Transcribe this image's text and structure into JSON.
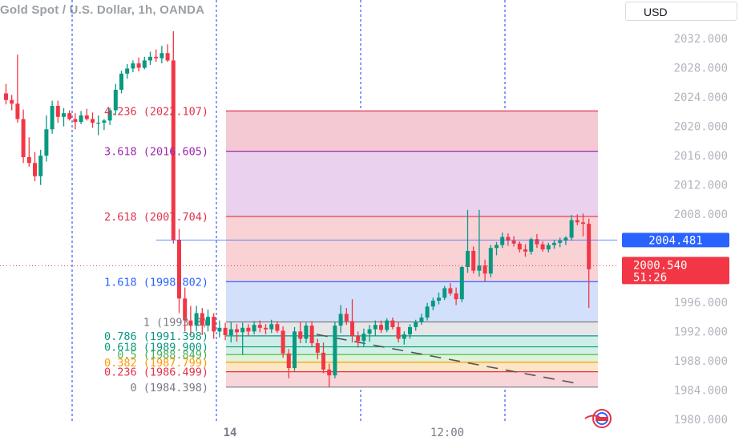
{
  "header": {
    "title": "Gold Spot / U.S. Dollar, 1h, OANDA",
    "currency_label": "USD"
  },
  "chart_data": {
    "type": "candlestick",
    "title": "Gold Spot / U.S. Dollar, 1h, OANDA",
    "ylim": [
      1979.0,
      2035.0
    ],
    "y_ticks": [
      "2032.000",
      "2028.000",
      "2024.000",
      "2020.000",
      "2016.000",
      "2012.000",
      "2008.000",
      "1996.000",
      "1992.000",
      "1988.000",
      "1984.000",
      "1980.000"
    ],
    "y_tick_values": [
      2032,
      2028,
      2024,
      2020,
      2016,
      2012,
      2008,
      1996,
      1992,
      1988,
      1984,
      1980
    ],
    "x_ticks": [
      "14",
      "12:00"
    ],
    "price_labels": {
      "current_line": {
        "value": 2004.481,
        "label": "2004.481"
      },
      "last_price": {
        "value": 2000.54,
        "label": "2000.540",
        "countdown": "51:26"
      }
    },
    "fib_levels": [
      {
        "ratio": "4.236",
        "value": 2022.107,
        "label": "4.236 (2022.107)",
        "color": "#e0334a"
      },
      {
        "ratio": "3.618",
        "value": 2016.605,
        "label": "3.618 (2016.605)",
        "color": "#9c27b0"
      },
      {
        "ratio": "2.618",
        "value": 2007.704,
        "label": "2.618 (2007.704)",
        "color": "#e0334a"
      },
      {
        "ratio": "1.618",
        "value": 1998.802,
        "label": "1.618 (1998.802)",
        "color": "#2962ff"
      },
      {
        "ratio": "1",
        "value": 1993.3,
        "label": "1 (1993.3)",
        "color": "#787b86"
      },
      {
        "ratio": "0.786",
        "value": 1991.398,
        "label": "0.786 (1991.398)",
        "color": "#089981"
      },
      {
        "ratio": "0.618",
        "value": 1989.9,
        "label": "0.618 (1989.900)",
        "color": "#089981"
      },
      {
        "ratio": "0.5",
        "value": 1988.849,
        "label": "0.5 (1988.849)",
        "color": "#4caf50"
      },
      {
        "ratio": "0.382",
        "value": 1987.799,
        "label": "0.382 (1987.799)",
        "color": "#ff9800"
      },
      {
        "ratio": "0.236",
        "value": 1986.499,
        "label": "0.236 (1986.499)",
        "color": "#e0334a"
      },
      {
        "ratio": "0",
        "value": 1984.398,
        "label": "0 (1984.398)",
        "color": "#787b86"
      }
    ],
    "candles": [
      [
        2024.5,
        2025.8,
        2023.0,
        2023.6
      ],
      [
        2023.6,
        2024.3,
        2022.2,
        2023.1
      ],
      [
        2023.1,
        2029.8,
        2020.5,
        2021.0
      ],
      [
        2021.0,
        2022.3,
        2015.0,
        2015.8
      ],
      [
        2015.8,
        2018.5,
        2014.5,
        2015.0
      ],
      [
        2015.0,
        2016.5,
        2012.5,
        2013.2
      ],
      [
        2013.2,
        2016.8,
        2012.0,
        2016.0
      ],
      [
        2016.0,
        2021.5,
        2015.2,
        2019.6
      ],
      [
        2019.6,
        2023.5,
        2019.0,
        2022.8
      ],
      [
        2022.8,
        2023.5,
        2020.5,
        2021.3
      ],
      [
        2021.3,
        2022.5,
        2020.0,
        2021.8
      ],
      [
        2021.8,
        2022.2,
        2020.8,
        2021.0
      ],
      [
        2021.0,
        2021.8,
        2019.6,
        2020.6
      ],
      [
        2020.6,
        2022.1,
        2020.3,
        2021.5
      ],
      [
        2021.5,
        2022.4,
        2020.8,
        2021.0
      ],
      [
        2021.0,
        2021.9,
        2019.8,
        2020.5
      ],
      [
        2020.5,
        2021.5,
        2018.8,
        2020.5
      ],
      [
        2020.5,
        2021.0,
        2019.5,
        2020.8
      ],
      [
        2020.8,
        2022.5,
        2020.2,
        2022.2
      ],
      [
        2022.2,
        2025.8,
        2021.5,
        2025.0
      ],
      [
        2025.0,
        2027.6,
        2024.5,
        2027.2
      ],
      [
        2027.2,
        2028.5,
        2026.5,
        2027.9
      ],
      [
        2027.9,
        2029.0,
        2027.4,
        2028.6
      ],
      [
        2028.6,
        2029.4,
        2027.5,
        2028.0
      ],
      [
        2028.0,
        2029.5,
        2027.8,
        2029.0
      ],
      [
        2029.0,
        2030.2,
        2028.4,
        2029.5
      ],
      [
        2029.5,
        2030.5,
        2028.8,
        2029.3
      ],
      [
        2029.3,
        2031.0,
        2028.6,
        2030.0
      ],
      [
        2030.0,
        2031.2,
        2028.8,
        2029.0
      ],
      [
        2029.0,
        2033.0,
        2004.0,
        2004.5
      ],
      [
        2004.5,
        2006.0,
        1994.5,
        1996.5
      ],
      [
        1996.5,
        1998.0,
        1992.0,
        1993.5
      ],
      [
        1993.5,
        1995.5,
        1991.5,
        1992.8
      ],
      [
        1992.8,
        1995.5,
        1992.0,
        1994.5
      ],
      [
        1994.5,
        1995.2,
        1991.5,
        1992.8
      ],
      [
        1992.8,
        1995.0,
        1992.0,
        1994.0
      ],
      [
        1994.0,
        1994.5,
        1991.0,
        1992.0
      ],
      [
        1992.0,
        1993.5,
        1991.2,
        1992.5
      ],
      [
        1992.5,
        1993.2,
        1990.8,
        1991.5
      ],
      [
        1991.5,
        1993.3,
        1990.5,
        1992.3
      ],
      [
        1992.3,
        1993.0,
        1990.6,
        1991.9
      ],
      [
        1991.9,
        1993.2,
        1988.8,
        1992.5
      ],
      [
        1992.5,
        1993.0,
        1991.4,
        1992.0
      ],
      [
        1992.0,
        1993.4,
        1991.6,
        1992.9
      ],
      [
        1992.9,
        1993.5,
        1991.9,
        1992.5
      ],
      [
        1992.5,
        1993.0,
        1991.6,
        1992.3
      ],
      [
        1992.3,
        1993.6,
        1991.8,
        1993.0
      ],
      [
        1993.0,
        1993.4,
        1991.8,
        1992.1
      ],
      [
        1992.1,
        1992.7,
        1988.4,
        1989.0
      ],
      [
        1989.0,
        1989.6,
        1985.6,
        1987.0
      ],
      [
        1987.0,
        1992.6,
        1986.6,
        1992.0
      ],
      [
        1992.0,
        1993.3,
        1990.4,
        1991.0
      ],
      [
        1991.0,
        1993.2,
        1990.4,
        1992.8
      ],
      [
        1992.8,
        1993.4,
        1989.9,
        1990.4
      ],
      [
        1990.4,
        1991.0,
        1988.2,
        1989.1
      ],
      [
        1989.1,
        1990.5,
        1986.3,
        1986.8
      ],
      [
        1986.8,
        1987.6,
        1984.4,
        1986.0
      ],
      [
        1986.0,
        1993.3,
        1985.6,
        1992.8
      ],
      [
        1992.8,
        1995.6,
        1991.8,
        1994.4
      ],
      [
        1994.4,
        1995.2,
        1992.9,
        1993.4
      ],
      [
        1993.4,
        1996.4,
        1990.5,
        1991.4
      ],
      [
        1991.4,
        1992.0,
        1989.8,
        1990.7
      ],
      [
        1990.7,
        1992.4,
        1989.9,
        1991.7
      ],
      [
        1991.7,
        1992.9,
        1990.6,
        1992.3
      ],
      [
        1992.3,
        1993.5,
        1991.4,
        1992.9
      ],
      [
        1992.9,
        1993.5,
        1991.8,
        1992.2
      ],
      [
        1992.2,
        1993.8,
        1991.9,
        1993.5
      ],
      [
        1993.5,
        1993.9,
        1992.3,
        1992.6
      ],
      [
        1992.6,
        1993.3,
        1990.5,
        1991.0
      ],
      [
        1991.0,
        1992.0,
        1990.2,
        1991.6
      ],
      [
        1991.6,
        1993.0,
        1991.0,
        1992.6
      ],
      [
        1992.6,
        1993.6,
        1992.1,
        1993.3
      ],
      [
        1993.3,
        1994.4,
        1992.9,
        1993.9
      ],
      [
        1993.9,
        1995.9,
        1993.5,
        1995.4
      ],
      [
        1995.4,
        1996.6,
        1994.9,
        1996.2
      ],
      [
        1996.2,
        1997.3,
        1995.7,
        1996.6
      ],
      [
        1996.6,
        1998.2,
        1996.3,
        1997.9
      ],
      [
        1997.9,
        1998.6,
        1996.9,
        1997.2
      ],
      [
        1997.2,
        1998.0,
        1995.6,
        1996.4
      ],
      [
        1996.4,
        2000.9,
        1996.0,
        2000.8
      ],
      [
        2000.8,
        2008.6,
        2000.0,
        2003.0
      ],
      [
        2003.0,
        2003.6,
        1999.9,
        2000.3
      ],
      [
        2000.3,
        2008.6,
        1999.5,
        2001.0
      ],
      [
        2001.0,
        2001.8,
        1998.8,
        1999.9
      ],
      [
        1999.9,
        2003.8,
        1999.4,
        2003.4
      ],
      [
        2003.4,
        2004.2,
        2002.4,
        2003.8
      ],
      [
        2003.8,
        2005.5,
        2003.4,
        2004.9
      ],
      [
        2004.9,
        2005.4,
        2003.7,
        2004.4
      ],
      [
        2004.4,
        2005.0,
        2003.6,
        2004.0
      ],
      [
        2004.0,
        2004.3,
        2002.8,
        2003.2
      ],
      [
        2003.2,
        2003.9,
        2002.2,
        2002.9
      ],
      [
        2002.9,
        2004.8,
        2002.5,
        2004.6
      ],
      [
        2004.6,
        2005.3,
        2003.4,
        2003.9
      ],
      [
        2003.9,
        2004.3,
        2002.9,
        2003.2
      ],
      [
        2003.2,
        2004.1,
        2002.8,
        2003.8
      ],
      [
        2003.8,
        2004.5,
        2003.3,
        2004.1
      ],
      [
        2004.1,
        2004.8,
        2003.5,
        2004.4
      ],
      [
        2004.4,
        2005.0,
        2003.8,
        2004.8
      ],
      [
        2004.8,
        2007.9,
        2004.4,
        2007.2
      ],
      [
        2007.2,
        2008.0,
        2006.5,
        2006.9
      ],
      [
        2006.9,
        2008.1,
        2005.0,
        2006.7
      ],
      [
        2006.7,
        2007.4,
        1995.2,
        2000.5
      ]
    ]
  }
}
